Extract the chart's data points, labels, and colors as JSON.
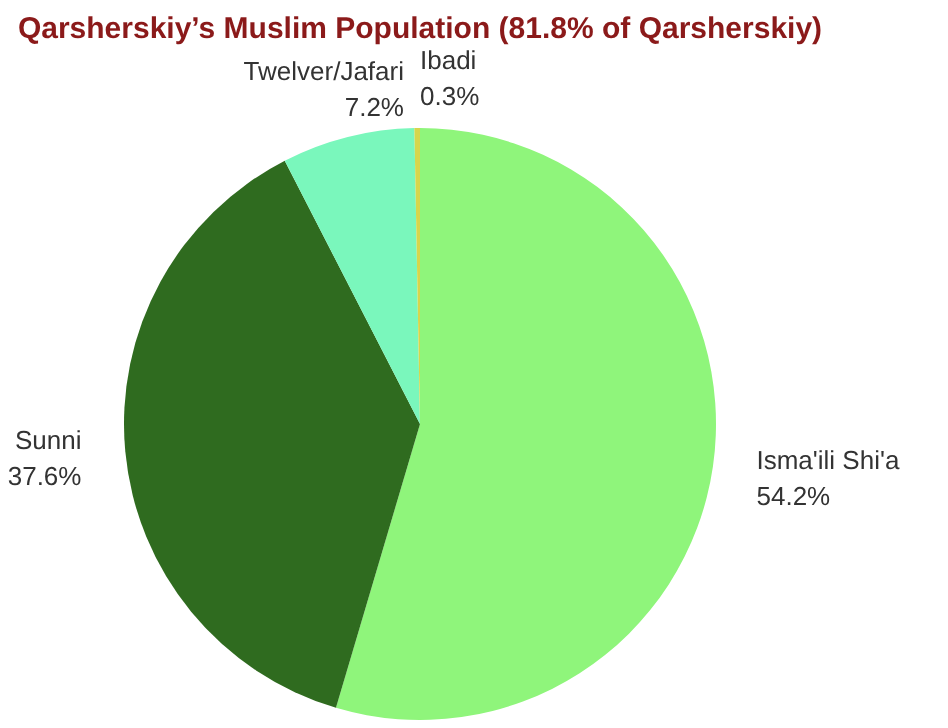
{
  "chart_data": {
    "type": "pie",
    "title": "Qarsherskiy’s Muslim Population (81.8% of Qarsherskiy)",
    "categories": [
      "Isma'ili Shi'a",
      "Sunni",
      "Twelver/Jafari",
      "Ibadi"
    ],
    "values": [
      54.2,
      37.6,
      7.2,
      0.3
    ],
    "colors": [
      "#8ff57b",
      "#2f6b1f",
      "#7af7bc",
      "#d6d64c"
    ],
    "value_labels": [
      "54.2%",
      "37.6%",
      "7.2%",
      "0.3%"
    ],
    "legend": false
  }
}
